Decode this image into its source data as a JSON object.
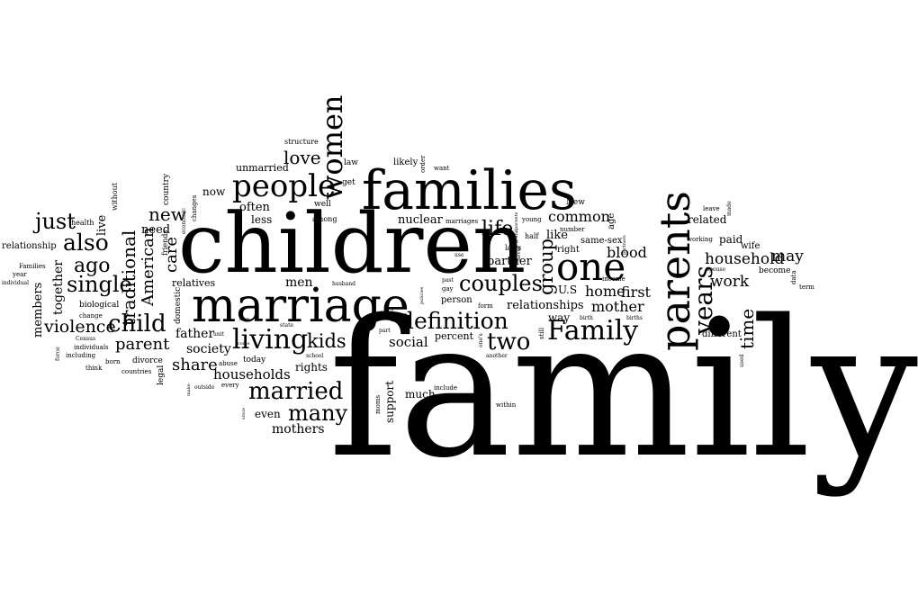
{
  "ink_color": "#000000",
  "background_color": "#ffffff",
  "words": {
    "family": "family",
    "children": "children",
    "families": "families",
    "marriage": "marriage",
    "parents": "parents",
    "one": "one",
    "people": "people",
    "women": "women",
    "Family": "Family",
    "living": "living",
    "definition": "definition",
    "married": "married",
    "child": "child",
    "years": "years",
    "couples": "couples",
    "two": "two",
    "also": "also",
    "just": "just",
    "single": "single",
    "ago": "ago",
    "many": "many",
    "new": "new",
    "love": "love",
    "kids": "kids",
    "violence": "violence",
    "parent": "parent",
    "life": "life",
    "share": "share",
    "traditional": "traditional",
    "care": "care",
    "American": "American",
    "time": "time",
    "group": "group",
    "household": "household",
    "may": "may",
    "work": "work",
    "mother": "mother",
    "home": "home",
    "first": "first",
    "blood": "blood",
    "common": "common",
    "social": "social",
    "households": "households",
    "mothers": "mothers",
    "relationships": "relationships",
    "partner": "partner",
    "like": "like",
    "men": "men",
    "society": "society",
    "father": "father",
    "together": "together",
    "members": "members",
    "nuclear": "nuclear",
    "often": "often",
    "less": "less",
    "now": "now",
    "need": "need",
    "live": "live",
    "unmarried": "unmarried",
    "related": "related",
    "paid": "paid",
    "rights": "rights",
    "even": "even",
    "support": "support",
    "much": "much",
    "way": "way",
    "percent": "percent",
    "person": "person",
    "relatives": "relatives",
    "U.S": "U.S",
    "age": "age",
    "same-sex": "same-sex",
    "right": "right",
    "wife": "wife",
    "become": "become",
    "different": "different",
    "Census": "Census",
    "biological": "biological",
    "relationship": "relationship",
    "today": "today",
    "divorce": "divorce",
    "legal": "legal",
    "domestic": "domestic",
    "friends": "friends",
    "country": "country",
    "changes": "changes",
    "economic": "economic",
    "without": "without",
    "health": "health",
    "structure": "structure",
    "likely": "likely",
    "law": "law",
    "well": "well",
    "get": "get",
    "among": "among",
    "order": "order",
    "want": "want",
    "New": "New",
    "marriages": "marriages",
    "young": "young",
    "grandparents": "grandparents",
    "number": "number",
    "half": "half",
    "laws": "laws",
    "never": "never",
    "partners": "partners",
    "leave": "leave",
    "made": "made",
    "working": "working",
    "spouse": "spouse",
    "data": "data",
    "term": "term",
    "income": "income",
    "births": "births",
    "birth": "birth",
    "still": "still",
    "one's": "one's",
    "another": "another",
    "within": "within",
    "include": "include",
    "moms": "moms",
    "gay": "gay",
    "past": "past",
    "use": "use",
    "policies": "policies",
    "high": "high",
    "husband": "husband",
    "part": "part",
    "school": "school",
    "state": "state",
    "man": "man",
    "unit": "unit",
    "come": "come",
    "abuse": "abuse",
    "every": "every",
    "outside": "outside",
    "make": "make",
    "since": "since",
    "form": "form",
    "used": "used",
    "countries": "countries",
    "born": "born",
    "think": "think",
    "including": "including",
    "individuals": "individuals",
    "change": "change",
    "force": "force",
    "Families": "Families",
    "year": "year",
    "individual": "individual"
  }
}
